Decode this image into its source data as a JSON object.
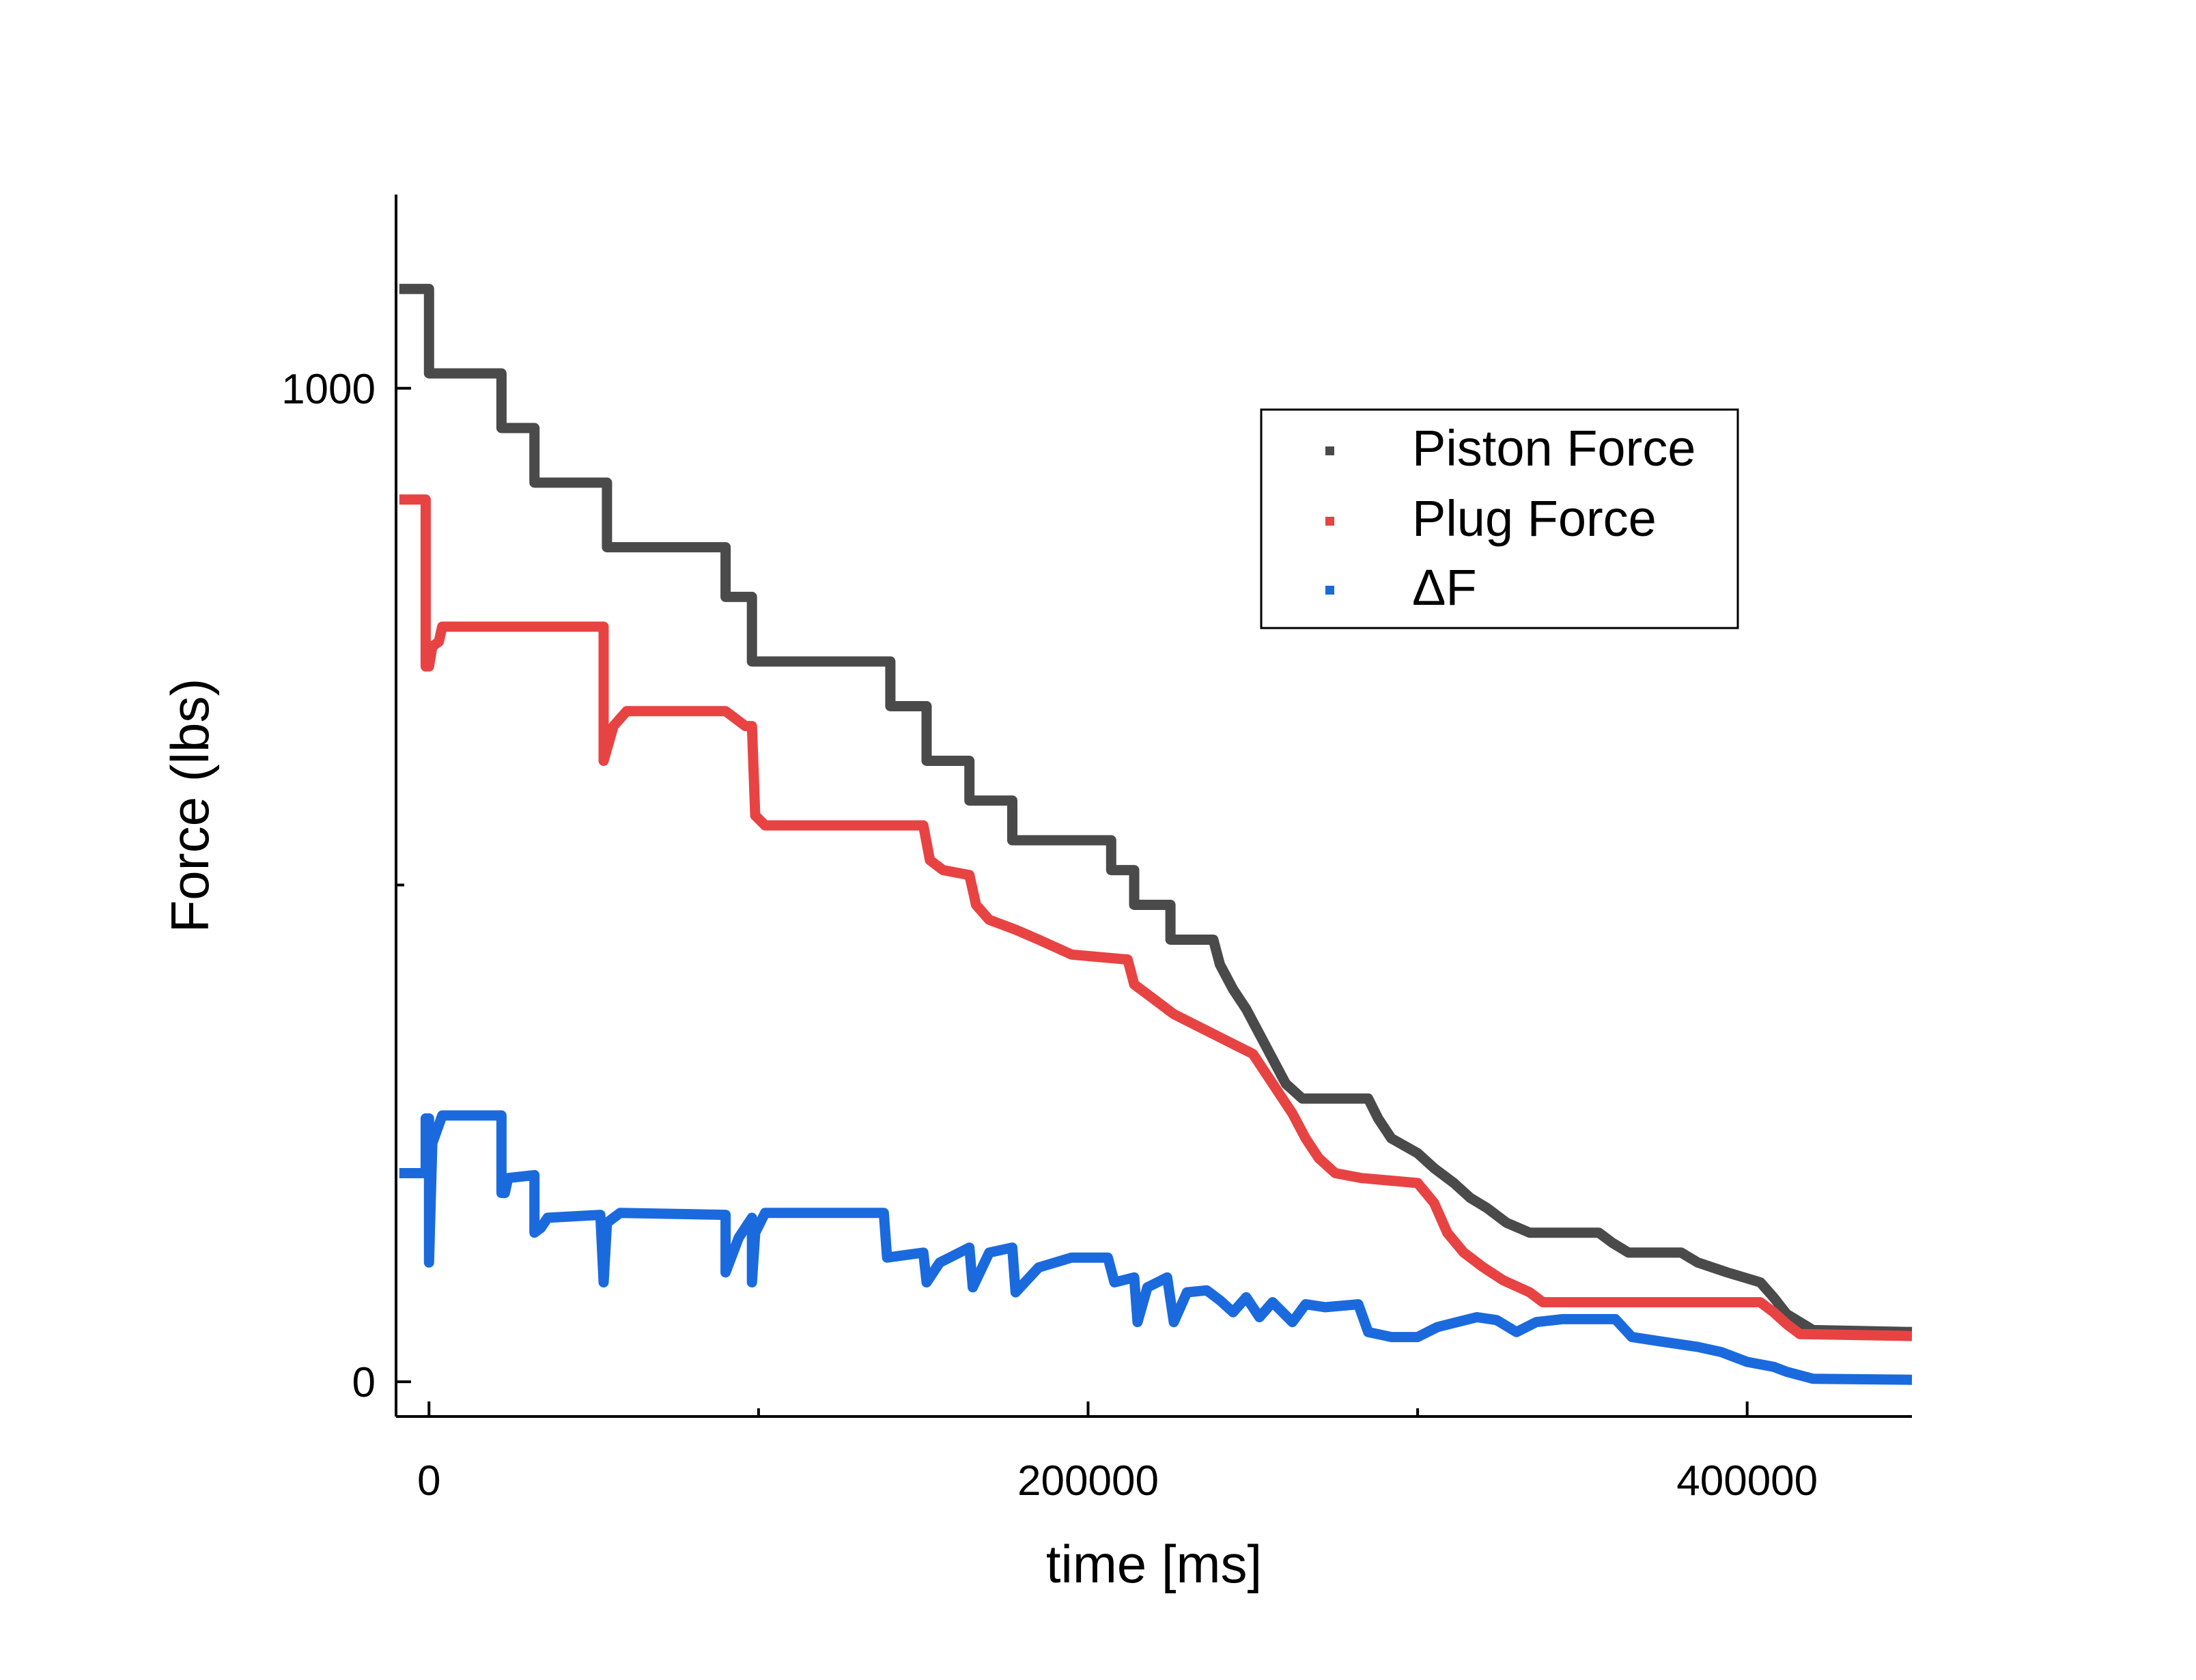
{
  "chart_data": {
    "type": "scatter",
    "title": "",
    "xlabel": "time [ms]",
    "ylabel": "Force (lbs)",
    "xlim": [
      -10000,
      450000
    ],
    "ylim": [
      -35,
      1195
    ],
    "xticks": [
      {
        "value": 0,
        "label": "0"
      },
      {
        "value": 200000,
        "label": "200000"
      },
      {
        "value": 400000,
        "label": "400000"
      }
    ],
    "xminor": [
      100000,
      300000
    ],
    "yticks": [
      {
        "value": 0,
        "label": "0"
      },
      {
        "value": 1000,
        "label": "1000"
      }
    ],
    "yminor": [
      500
    ],
    "grid": false,
    "legend_position": "top-right",
    "series": [
      {
        "name": "Piston Force",
        "color": "#4a4a4a",
        "points": [
          [
            -9000,
            1100
          ],
          [
            0,
            1100
          ],
          [
            0,
            1015
          ],
          [
            20000,
            1015
          ],
          [
            22000,
            1015
          ],
          [
            22000,
            960
          ],
          [
            32000,
            960
          ],
          [
            32000,
            905
          ],
          [
            52000,
            905
          ],
          [
            54000,
            905
          ],
          [
            54000,
            840
          ],
          [
            90000,
            840
          ],
          [
            90000,
            790
          ],
          [
            98000,
            790
          ],
          [
            98000,
            725
          ],
          [
            138000,
            725
          ],
          [
            140000,
            725
          ],
          [
            140000,
            680
          ],
          [
            151000,
            680
          ],
          [
            151000,
            625
          ],
          [
            164000,
            625
          ],
          [
            164000,
            585
          ],
          [
            177000,
            585
          ],
          [
            177000,
            545
          ],
          [
            206000,
            545
          ],
          [
            207000,
            545
          ],
          [
            207000,
            515
          ],
          [
            214000,
            515
          ],
          [
            214000,
            480
          ],
          [
            225000,
            480
          ],
          [
            225000,
            445
          ],
          [
            238000,
            445
          ],
          [
            240000,
            420
          ],
          [
            244000,
            395
          ],
          [
            248000,
            375
          ],
          [
            252000,
            350
          ],
          [
            256000,
            325
          ],
          [
            260000,
            300
          ],
          [
            265000,
            285
          ],
          [
            285000,
            285
          ],
          [
            288000,
            265
          ],
          [
            292000,
            245
          ],
          [
            300000,
            230
          ],
          [
            305000,
            215
          ],
          [
            311000,
            200
          ],
          [
            316000,
            185
          ],
          [
            321000,
            175
          ],
          [
            327000,
            160
          ],
          [
            334000,
            150
          ],
          [
            355000,
            150
          ],
          [
            359000,
            140
          ],
          [
            364000,
            130
          ],
          [
            380000,
            130
          ],
          [
            385000,
            120
          ],
          [
            394000,
            110
          ],
          [
            404000,
            100
          ],
          [
            408000,
            85
          ],
          [
            412000,
            68
          ],
          [
            420000,
            52
          ],
          [
            450000,
            50
          ]
        ]
      },
      {
        "name": "Plug Force",
        "color": "#e84343",
        "points": [
          [
            -9000,
            888
          ],
          [
            -1000,
            888
          ],
          [
            -1000,
            720
          ],
          [
            0,
            720
          ],
          [
            1000,
            740
          ],
          [
            3000,
            745
          ],
          [
            4000,
            760
          ],
          [
            53000,
            760
          ],
          [
            53000,
            625
          ],
          [
            56000,
            660
          ],
          [
            60000,
            675
          ],
          [
            90000,
            675
          ],
          [
            92000,
            670
          ],
          [
            96000,
            660
          ],
          [
            98000,
            660
          ],
          [
            99000,
            570
          ],
          [
            102000,
            560
          ],
          [
            150000,
            560
          ],
          [
            152000,
            525
          ],
          [
            156000,
            515
          ],
          [
            164000,
            510
          ],
          [
            166000,
            480
          ],
          [
            170000,
            465
          ],
          [
            178000,
            455
          ],
          [
            185000,
            445
          ],
          [
            195000,
            430
          ],
          [
            212000,
            425
          ],
          [
            214000,
            400
          ],
          [
            220000,
            385
          ],
          [
            226000,
            370
          ],
          [
            235000,
            355
          ],
          [
            244000,
            340
          ],
          [
            250000,
            330
          ],
          [
            254000,
            310
          ],
          [
            258000,
            290
          ],
          [
            262000,
            270
          ],
          [
            266000,
            245
          ],
          [
            270000,
            225
          ],
          [
            275000,
            210
          ],
          [
            283000,
            205
          ],
          [
            300000,
            200
          ],
          [
            305000,
            180
          ],
          [
            309000,
            150
          ],
          [
            314000,
            130
          ],
          [
            320000,
            115
          ],
          [
            326000,
            102
          ],
          [
            334000,
            90
          ],
          [
            338000,
            80
          ],
          [
            350000,
            80
          ],
          [
            400000,
            80
          ],
          [
            404000,
            80
          ],
          [
            408000,
            70
          ],
          [
            412000,
            58
          ],
          [
            416000,
            48
          ],
          [
            450000,
            46
          ]
        ]
      },
      {
        "name": "ΔF",
        "color": "#1a6ade",
        "points": [
          [
            -9000,
            210
          ],
          [
            -1000,
            210
          ],
          [
            -1000,
            265
          ],
          [
            0,
            265
          ],
          [
            0,
            120
          ],
          [
            1000,
            240
          ],
          [
            4000,
            268
          ],
          [
            20000,
            268
          ],
          [
            22000,
            268
          ],
          [
            22000,
            190
          ],
          [
            23000,
            190
          ],
          [
            24000,
            205
          ],
          [
            32000,
            208
          ],
          [
            32000,
            150
          ],
          [
            34000,
            155
          ],
          [
            36000,
            165
          ],
          [
            52000,
            168
          ],
          [
            53000,
            100
          ],
          [
            54000,
            160
          ],
          [
            58000,
            170
          ],
          [
            90000,
            168
          ],
          [
            90000,
            110
          ],
          [
            94000,
            145
          ],
          [
            98000,
            165
          ],
          [
            98000,
            100
          ],
          [
            99000,
            150
          ],
          [
            102000,
            170
          ],
          [
            138000,
            170
          ],
          [
            139000,
            125
          ],
          [
            150000,
            130
          ],
          [
            151000,
            100
          ],
          [
            155000,
            120
          ],
          [
            164000,
            135
          ],
          [
            165000,
            95
          ],
          [
            170000,
            130
          ],
          [
            177000,
            135
          ],
          [
            178000,
            90
          ],
          [
            185000,
            115
          ],
          [
            195000,
            125
          ],
          [
            206000,
            125
          ],
          [
            208000,
            100
          ],
          [
            214000,
            105
          ],
          [
            215000,
            60
          ],
          [
            218000,
            95
          ],
          [
            224000,
            105
          ],
          [
            226000,
            60
          ],
          [
            230000,
            90
          ],
          [
            236000,
            92
          ],
          [
            240000,
            82
          ],
          [
            244000,
            70
          ],
          [
            248000,
            85
          ],
          [
            252000,
            65
          ],
          [
            256000,
            80
          ],
          [
            262000,
            60
          ],
          [
            266000,
            78
          ],
          [
            272000,
            75
          ],
          [
            282000,
            78
          ],
          [
            285000,
            50
          ],
          [
            292000,
            45
          ],
          [
            300000,
            45
          ],
          [
            306000,
            55
          ],
          [
            312000,
            60
          ],
          [
            318000,
            65
          ],
          [
            324000,
            62
          ],
          [
            330000,
            50
          ],
          [
            336000,
            60
          ],
          [
            344000,
            63
          ],
          [
            360000,
            63
          ],
          [
            365000,
            45
          ],
          [
            375000,
            40
          ],
          [
            385000,
            35
          ],
          [
            392000,
            30
          ],
          [
            400000,
            20
          ],
          [
            408000,
            15
          ],
          [
            412000,
            10
          ],
          [
            420000,
            3
          ],
          [
            450000,
            2
          ]
        ]
      }
    ]
  }
}
